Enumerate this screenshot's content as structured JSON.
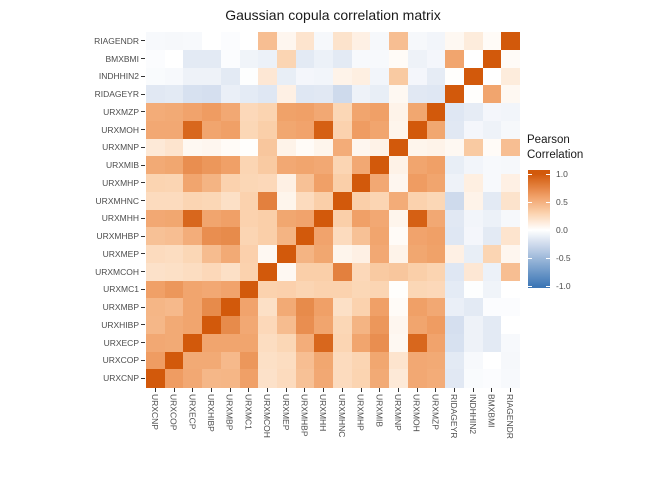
{
  "title": "Gaussian copula correlation matrix",
  "legend": {
    "title": [
      "Pearson",
      "Correlation"
    ],
    "tick_labels": [
      "1.0",
      "0.5",
      "0.0",
      "-0.5",
      "-1.0"
    ],
    "tick_values": [
      1.0,
      0.5,
      0.0,
      -0.5,
      -1.0
    ]
  },
  "chart_data": {
    "type": "heatmap",
    "title": "Gaussian copula correlation matrix",
    "legend_title": "Pearson Correlation",
    "x_categories": [
      "URXCNP",
      "URXCOP",
      "URXECP",
      "URXHIBP",
      "URXMBP",
      "URXMC1",
      "URXMCOH",
      "URXMEP",
      "URXMHBP",
      "URXMHH",
      "URXMHNC",
      "URXMHP",
      "URXMIB",
      "URXMNP",
      "URXMOH",
      "URXMZP",
      "RIDAGEYR",
      "INDHHIN2",
      "BMXBMI",
      "RIAGENDR"
    ],
    "y_categories": [
      "RIAGENDR",
      "BMXBMI",
      "INDHHIN2",
      "RIDAGEYR",
      "URXMZP",
      "URXMOH",
      "URXMNP",
      "URXMIB",
      "URXMHP",
      "URXMHNC",
      "URXMHH",
      "URXMHBP",
      "URXMEP",
      "URXMCOH",
      "URXMC1",
      "URXMBP",
      "URXHIBP",
      "URXECP",
      "URXCOP",
      "URXCNP"
    ],
    "values": [
      [
        -0.04,
        -0.05,
        -0.04,
        0.0,
        -0.02,
        0.0,
        0.42,
        0.06,
        0.18,
        -0.05,
        0.19,
        0.1,
        -0.05,
        0.42,
        -0.05,
        -0.07,
        0.05,
        0.13,
        0.03,
        1.0
      ],
      [
        -0.02,
        0.0,
        -0.15,
        -0.15,
        -0.02,
        -0.08,
        -0.1,
        0.28,
        -0.15,
        -0.1,
        -0.15,
        -0.04,
        -0.04,
        0.03,
        -0.09,
        -0.06,
        0.57,
        0.0,
        1.0,
        0.03
      ],
      [
        -0.03,
        -0.04,
        -0.09,
        -0.09,
        -0.15,
        -0.01,
        0.16,
        -0.12,
        -0.06,
        -0.07,
        0.08,
        0.11,
        -0.07,
        0.35,
        -0.06,
        -0.13,
        0.01,
        1.0,
        0.0,
        0.13
      ],
      [
        -0.16,
        -0.15,
        -0.21,
        -0.22,
        -0.11,
        -0.14,
        -0.17,
        0.1,
        -0.17,
        -0.16,
        -0.26,
        -0.09,
        -0.12,
        0.05,
        -0.16,
        -0.17,
        1.0,
        0.01,
        0.57,
        0.05
      ],
      [
        0.53,
        0.54,
        0.58,
        0.62,
        0.55,
        0.26,
        0.29,
        0.59,
        0.6,
        0.55,
        0.27,
        0.57,
        0.6,
        0.08,
        0.56,
        1.0,
        -0.17,
        -0.13,
        -0.06,
        -0.07
      ],
      [
        0.55,
        0.55,
        0.92,
        0.57,
        0.6,
        0.27,
        0.32,
        0.56,
        0.58,
        0.96,
        0.3,
        0.62,
        0.57,
        0.07,
        1.0,
        0.56,
        -0.16,
        -0.06,
        -0.09,
        -0.05
      ],
      [
        0.15,
        0.18,
        0.05,
        0.06,
        0.03,
        0.01,
        0.37,
        0.08,
        0.03,
        0.07,
        0.53,
        0.06,
        0.09,
        1.0,
        0.07,
        0.08,
        0.05,
        0.35,
        0.03,
        0.42
      ],
      [
        0.54,
        0.56,
        0.7,
        0.65,
        0.6,
        0.28,
        0.35,
        0.55,
        0.57,
        0.55,
        0.28,
        0.55,
        1.0,
        0.09,
        0.57,
        0.6,
        -0.12,
        -0.07,
        -0.04,
        -0.05
      ],
      [
        0.29,
        0.28,
        0.57,
        0.48,
        0.3,
        0.27,
        0.26,
        0.1,
        0.4,
        0.6,
        0.32,
        1.0,
        0.55,
        0.06,
        0.62,
        0.57,
        -0.09,
        0.11,
        -0.04,
        0.1
      ],
      [
        0.24,
        0.24,
        0.28,
        0.27,
        0.21,
        0.3,
        0.78,
        0.07,
        0.24,
        0.32,
        1.0,
        0.32,
        0.28,
        0.53,
        0.3,
        0.27,
        -0.26,
        0.08,
        -0.15,
        0.19
      ],
      [
        0.55,
        0.56,
        0.92,
        0.57,
        0.6,
        0.3,
        0.32,
        0.56,
        0.58,
        1.0,
        0.32,
        0.6,
        0.55,
        0.07,
        0.96,
        0.55,
        -0.16,
        -0.07,
        -0.1,
        -0.05
      ],
      [
        0.4,
        0.42,
        0.52,
        0.7,
        0.72,
        0.28,
        0.32,
        0.48,
        1.0,
        0.58,
        0.24,
        0.4,
        0.57,
        0.03,
        0.58,
        0.6,
        -0.17,
        -0.06,
        -0.15,
        0.18
      ],
      [
        0.24,
        0.23,
        0.27,
        0.43,
        0.54,
        0.31,
        0.05,
        1.0,
        0.48,
        0.56,
        0.07,
        0.1,
        0.55,
        0.08,
        0.56,
        0.59,
        0.1,
        -0.12,
        0.28,
        0.06
      ],
      [
        0.2,
        0.21,
        0.23,
        0.26,
        0.21,
        0.3,
        1.0,
        0.05,
        0.32,
        0.32,
        0.78,
        0.26,
        0.35,
        0.37,
        0.32,
        0.29,
        -0.17,
        0.16,
        -0.1,
        0.42
      ],
      [
        0.6,
        0.65,
        0.57,
        0.55,
        0.58,
        1.0,
        0.3,
        0.31,
        0.28,
        0.3,
        0.3,
        0.27,
        0.28,
        0.01,
        0.27,
        0.26,
        -0.14,
        -0.01,
        -0.08,
        0.0
      ],
      [
        0.47,
        0.45,
        0.57,
        0.72,
        1.0,
        0.58,
        0.21,
        0.54,
        0.72,
        0.6,
        0.21,
        0.3,
        0.6,
        0.03,
        0.6,
        0.55,
        -0.11,
        -0.15,
        -0.02,
        -0.02
      ],
      [
        0.46,
        0.54,
        0.57,
        1.0,
        0.72,
        0.55,
        0.26,
        0.43,
        0.7,
        0.57,
        0.27,
        0.48,
        0.65,
        0.06,
        0.57,
        0.62,
        -0.22,
        -0.09,
        -0.15,
        0.0
      ],
      [
        0.55,
        0.54,
        1.0,
        0.57,
        0.57,
        0.57,
        0.23,
        0.27,
        0.52,
        0.92,
        0.28,
        0.57,
        0.7,
        0.05,
        0.92,
        0.58,
        -0.21,
        -0.09,
        -0.15,
        -0.04
      ],
      [
        0.62,
        1.0,
        0.54,
        0.54,
        0.45,
        0.65,
        0.21,
        0.23,
        0.42,
        0.56,
        0.24,
        0.28,
        0.56,
        0.18,
        0.55,
        0.54,
        -0.15,
        -0.04,
        0.0,
        -0.05
      ],
      [
        1.0,
        0.62,
        0.55,
        0.46,
        0.47,
        0.6,
        0.2,
        0.24,
        0.4,
        0.55,
        0.24,
        0.29,
        0.54,
        0.15,
        0.55,
        0.53,
        -0.16,
        -0.03,
        -0.02,
        -0.04
      ]
    ],
    "color_scale": {
      "low": "#3D77B6",
      "mid": "#FFFFFF",
      "high": "#D2590B",
      "domain": [
        -1,
        1
      ]
    },
    "layout": {
      "x_tick_rotation": 90,
      "legend_position": "right",
      "grid": false
    }
  }
}
